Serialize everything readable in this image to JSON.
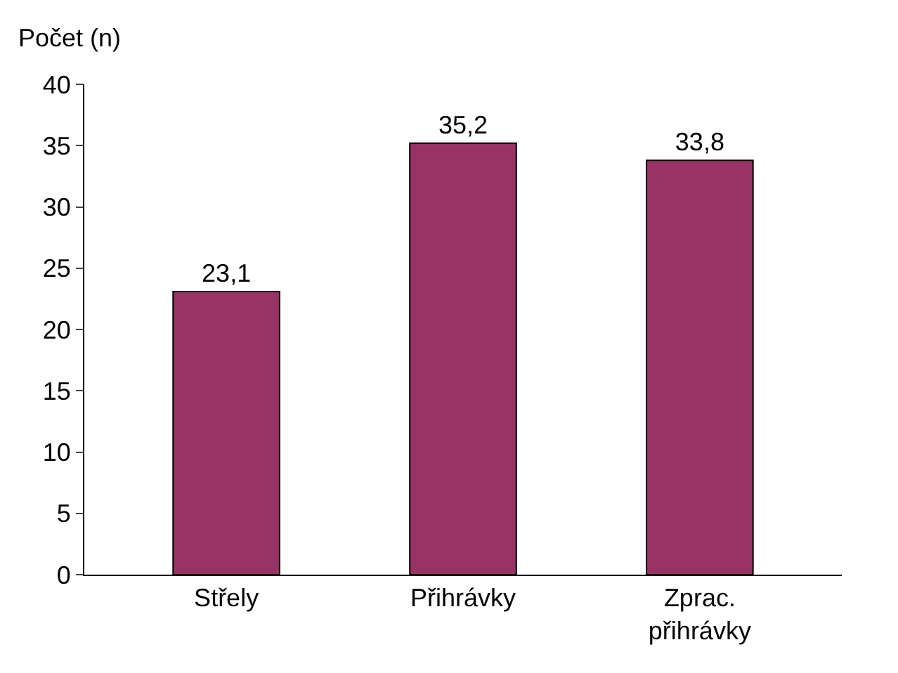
{
  "chart_data": {
    "type": "bar",
    "ylabel": "Počet (n)",
    "categories": [
      "Střely",
      "Přihrávky",
      "Zprac. přihrávky"
    ],
    "values": [
      23.1,
      35.2,
      33.8
    ],
    "value_labels": [
      "23,1",
      "35,2",
      "33,8"
    ],
    "color": "#993366",
    "ylim": [
      0,
      40
    ],
    "yticks": [
      0,
      5,
      10,
      15,
      20,
      25,
      30,
      35,
      40
    ],
    "legend": false
  }
}
